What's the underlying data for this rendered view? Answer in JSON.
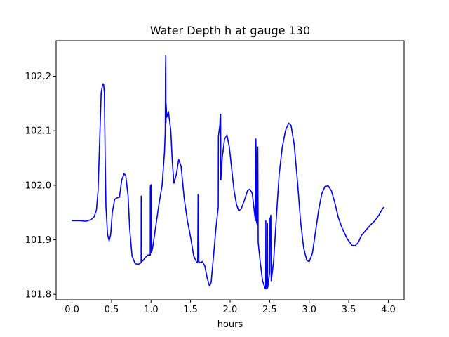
{
  "chart_data": {
    "type": "line",
    "title": "Water Depth h at gauge 130",
    "xlabel": "hours",
    "ylabel": "",
    "xlim": [
      -0.2,
      4.2
    ],
    "ylim": [
      101.79,
      102.265
    ],
    "x_ticks": [
      0.0,
      0.5,
      1.0,
      1.5,
      2.0,
      2.5,
      3.0,
      3.5,
      4.0
    ],
    "x_tick_labels": [
      "0.0",
      "0.5",
      "1.0",
      "1.5",
      "2.0",
      "2.5",
      "3.0",
      "3.5",
      "4.0"
    ],
    "y_ticks": [
      101.8,
      101.9,
      102.0,
      102.1,
      102.2
    ],
    "y_tick_labels": [
      "101.8",
      "101.9",
      "102.0",
      "102.1",
      "102.2"
    ],
    "grid": false,
    "legend": "none",
    "series": [
      {
        "color": "#0000ff",
        "points": [
          [
            0.0,
            101.935
          ],
          [
            0.1,
            101.935
          ],
          [
            0.18,
            101.934
          ],
          [
            0.24,
            101.937
          ],
          [
            0.28,
            101.942
          ],
          [
            0.31,
            101.955
          ],
          [
            0.33,
            101.99
          ],
          [
            0.35,
            102.08
          ],
          [
            0.37,
            102.17
          ],
          [
            0.39,
            102.186
          ],
          [
            0.4,
            102.185
          ],
          [
            0.41,
            102.17
          ],
          [
            0.42,
            102.05
          ],
          [
            0.43,
            101.96
          ],
          [
            0.45,
            101.91
          ],
          [
            0.47,
            101.898
          ],
          [
            0.49,
            101.91
          ],
          [
            0.51,
            101.95
          ],
          [
            0.54,
            101.974
          ],
          [
            0.57,
            101.977
          ],
          [
            0.6,
            101.978
          ],
          [
            0.63,
            102.01
          ],
          [
            0.66,
            102.021
          ],
          [
            0.68,
            102.018
          ],
          [
            0.71,
            101.98
          ],
          [
            0.73,
            101.92
          ],
          [
            0.76,
            101.87
          ],
          [
            0.8,
            101.856
          ],
          [
            0.84,
            101.855
          ],
          [
            0.875,
            101.858
          ],
          [
            0.876,
            101.98
          ],
          [
            0.878,
            101.86
          ],
          [
            0.9,
            101.862
          ],
          [
            0.93,
            101.868
          ],
          [
            0.96,
            101.872
          ],
          [
            0.99,
            101.872
          ],
          [
            0.991,
            101.998
          ],
          [
            1.0,
            102.001
          ],
          [
            1.005,
            101.876
          ],
          [
            1.02,
            101.885
          ],
          [
            1.06,
            101.925
          ],
          [
            1.1,
            101.965
          ],
          [
            1.14,
            102.0
          ],
          [
            1.17,
            102.06
          ],
          [
            1.18,
            102.1
          ],
          [
            1.183,
            102.21
          ],
          [
            1.186,
            102.238
          ],
          [
            1.189,
            102.115
          ],
          [
            1.19,
            102.15
          ],
          [
            1.2,
            102.125
          ],
          [
            1.22,
            102.135
          ],
          [
            1.25,
            102.1
          ],
          [
            1.27,
            102.04
          ],
          [
            1.29,
            102.004
          ],
          [
            1.32,
            102.02
          ],
          [
            1.35,
            102.047
          ],
          [
            1.38,
            102.035
          ],
          [
            1.42,
            101.975
          ],
          [
            1.46,
            101.935
          ],
          [
            1.5,
            101.905
          ],
          [
            1.54,
            101.87
          ],
          [
            1.58,
            101.858
          ],
          [
            1.59,
            101.858
          ],
          [
            1.595,
            101.983
          ],
          [
            1.6,
            101.98
          ],
          [
            1.605,
            101.86
          ],
          [
            1.62,
            101.858
          ],
          [
            1.65,
            101.86
          ],
          [
            1.68,
            101.852
          ],
          [
            1.71,
            101.83
          ],
          [
            1.74,
            101.815
          ],
          [
            1.76,
            101.822
          ],
          [
            1.79,
            101.87
          ],
          [
            1.82,
            101.92
          ],
          [
            1.85,
            101.96
          ],
          [
            1.852,
            102.09
          ],
          [
            1.87,
            102.11
          ],
          [
            1.875,
            102.13
          ],
          [
            1.88,
            102.13
          ],
          [
            1.883,
            102.01
          ],
          [
            1.9,
            102.05
          ],
          [
            1.93,
            102.085
          ],
          [
            1.96,
            102.092
          ],
          [
            1.99,
            102.07
          ],
          [
            2.02,
            102.03
          ],
          [
            2.05,
            101.99
          ],
          [
            2.08,
            101.965
          ],
          [
            2.11,
            101.953
          ],
          [
            2.14,
            101.957
          ],
          [
            2.18,
            101.972
          ],
          [
            2.22,
            101.99
          ],
          [
            2.25,
            101.993
          ],
          [
            2.28,
            101.985
          ],
          [
            2.32,
            101.935
          ],
          [
            2.325,
            102.085
          ],
          [
            2.33,
            102.06
          ],
          [
            2.335,
            101.932
          ],
          [
            2.345,
            101.928
          ],
          [
            2.35,
            102.07
          ],
          [
            2.355,
            101.895
          ],
          [
            2.38,
            101.86
          ],
          [
            2.41,
            101.825
          ],
          [
            2.44,
            101.812
          ],
          [
            2.45,
            101.81
          ],
          [
            2.452,
            101.935
          ],
          [
            2.455,
            101.81
          ],
          [
            2.47,
            101.812
          ],
          [
            2.472,
            101.93
          ],
          [
            2.475,
            101.812
          ],
          [
            2.5,
            101.84
          ],
          [
            2.505,
            101.94
          ],
          [
            2.51,
            101.94
          ],
          [
            2.515,
            101.945
          ],
          [
            2.52,
            101.825
          ],
          [
            2.55,
            101.86
          ],
          [
            2.58,
            101.93
          ],
          [
            2.62,
            102.02
          ],
          [
            2.66,
            102.07
          ],
          [
            2.7,
            102.1
          ],
          [
            2.74,
            102.114
          ],
          [
            2.77,
            102.11
          ],
          [
            2.81,
            102.075
          ],
          [
            2.85,
            102.01
          ],
          [
            2.89,
            101.935
          ],
          [
            2.93,
            101.885
          ],
          [
            2.97,
            101.862
          ],
          [
            3.0,
            101.86
          ],
          [
            3.04,
            101.875
          ],
          [
            3.08,
            101.915
          ],
          [
            3.12,
            101.955
          ],
          [
            3.16,
            101.985
          ],
          [
            3.2,
            101.998
          ],
          [
            3.24,
            101.999
          ],
          [
            3.28,
            101.99
          ],
          [
            3.32,
            101.97
          ],
          [
            3.37,
            101.94
          ],
          [
            3.42,
            101.92
          ],
          [
            3.48,
            101.902
          ],
          [
            3.54,
            101.89
          ],
          [
            3.58,
            101.889
          ],
          [
            3.62,
            101.895
          ],
          [
            3.66,
            101.908
          ],
          [
            3.72,
            101.918
          ],
          [
            3.78,
            101.928
          ],
          [
            3.83,
            101.935
          ],
          [
            3.88,
            101.945
          ],
          [
            3.93,
            101.958
          ],
          [
            3.95,
            101.96
          ]
        ]
      }
    ]
  }
}
